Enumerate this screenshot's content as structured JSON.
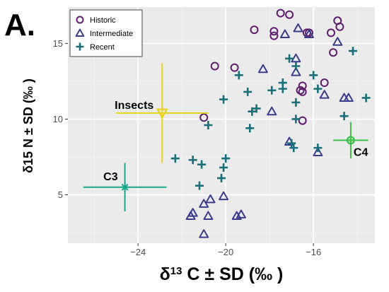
{
  "chart_data": {
    "type": "scatter",
    "panel_label": "A.",
    "xlabel": "δ13 C ± SD (‰ )",
    "ylabel": "δ15 N ± SD (‰ )",
    "xlim": [
      -27.2,
      -13.2
    ],
    "ylim": [
      1.8,
      17.4
    ],
    "x_ticks": [
      -24,
      -20,
      -16
    ],
    "y_ticks": [
      5,
      10,
      15
    ],
    "x_tick_labels": [
      "−24",
      "−20",
      "−16"
    ],
    "y_tick_labels": [
      "5",
      "10",
      "15"
    ],
    "grid": true,
    "legend_position": "top-left",
    "series": [
      {
        "name": "Historic",
        "marker": "circle",
        "color": "#5c1f6b",
        "points": [
          [
            -17.5,
            17.0
          ],
          [
            -17.1,
            16.9
          ],
          [
            -14.9,
            16.5
          ],
          [
            -18.7,
            15.9
          ],
          [
            -17.8,
            15.8
          ],
          [
            -17.8,
            15.5
          ],
          [
            -16.2,
            15.7
          ],
          [
            -16.3,
            15.7
          ],
          [
            -15.2,
            15.7
          ],
          [
            -14.8,
            16.1
          ],
          [
            -15.1,
            14.4
          ],
          [
            -20.5,
            13.5
          ],
          [
            -19.6,
            13.4
          ],
          [
            -16.5,
            12.2
          ],
          [
            -16.6,
            11.9
          ],
          [
            -16.5,
            11.8
          ],
          [
            -15.5,
            12.4
          ],
          [
            -16.5,
            9.9
          ],
          [
            -21.0,
            10.1
          ]
        ]
      },
      {
        "name": "Intermediate",
        "marker": "triangle",
        "color": "#3b3d8c",
        "points": [
          [
            -16.7,
            16.0
          ],
          [
            -17.3,
            15.6
          ],
          [
            -16.2,
            15.6
          ],
          [
            -14.9,
            15.1
          ],
          [
            -16.8,
            14.0
          ],
          [
            -18.3,
            13.3
          ],
          [
            -16.8,
            13.1
          ],
          [
            -15.5,
            11.6
          ],
          [
            -14.6,
            11.4
          ],
          [
            -14.4,
            11.4
          ],
          [
            -17.9,
            10.5
          ],
          [
            -17.1,
            8.5
          ],
          [
            -15.8,
            7.8
          ],
          [
            -21.5,
            3.8
          ],
          [
            -21.6,
            3.6
          ],
          [
            -20.8,
            3.6
          ],
          [
            -21.0,
            4.4
          ],
          [
            -20.1,
            4.9
          ],
          [
            -20.7,
            4.7
          ],
          [
            -19.3,
            3.7
          ],
          [
            -19.5,
            3.6
          ],
          [
            -21.0,
            2.4
          ]
        ]
      },
      {
        "name": "Recent",
        "marker": "plus",
        "color": "#1a6f7a",
        "points": [
          [
            -14.2,
            14.5
          ],
          [
            -17.1,
            14.0
          ],
          [
            -16.8,
            13.5
          ],
          [
            -19.4,
            12.9
          ],
          [
            -16.0,
            12.9
          ],
          [
            -17.4,
            12.4
          ],
          [
            -19.0,
            11.8
          ],
          [
            -17.9,
            11.9
          ],
          [
            -17.4,
            12.0
          ],
          [
            -15.8,
            12.0
          ],
          [
            -20.1,
            11.3
          ],
          [
            -16.8,
            11.1
          ],
          [
            -13.6,
            11.4
          ],
          [
            -18.6,
            10.7
          ],
          [
            -18.8,
            10.5
          ],
          [
            -16.8,
            10.0
          ],
          [
            -14.6,
            10.2
          ],
          [
            -20.8,
            9.6
          ],
          [
            -18.9,
            9.4
          ],
          [
            -17.0,
            8.4
          ],
          [
            -16.9,
            8.1
          ],
          [
            -15.8,
            8.1
          ],
          [
            -22.3,
            7.4
          ],
          [
            -21.5,
            7.3
          ],
          [
            -20.0,
            7.4
          ],
          [
            -21.1,
            7.0
          ],
          [
            -20.1,
            6.8
          ],
          [
            -20.2,
            6.1
          ],
          [
            -21.2,
            5.6
          ]
        ]
      }
    ],
    "sources": [
      {
        "label": "Insects",
        "marker": "triangle-down",
        "color": "#e6d41e",
        "x": -22.9,
        "y": 10.4,
        "x_sd": 2.1,
        "y_sd": 3.3,
        "label_side": "left"
      },
      {
        "label": "C3",
        "marker": "star",
        "color": "#1aa88a",
        "x": -24.6,
        "y": 5.5,
        "x_sd": 1.9,
        "y_sd": 1.6,
        "label_side": "left"
      },
      {
        "label": "C4",
        "marker": "circle-filled",
        "color": "#3cbf4a",
        "x": -14.3,
        "y": 8.6,
        "x_sd": 0.8,
        "y_sd": 1.2,
        "label_side": "below-right"
      }
    ]
  },
  "colors": {
    "panel_bg": "#ebebeb",
    "grid_major": "#ffffff",
    "legend_border": "#7f7f7f"
  }
}
